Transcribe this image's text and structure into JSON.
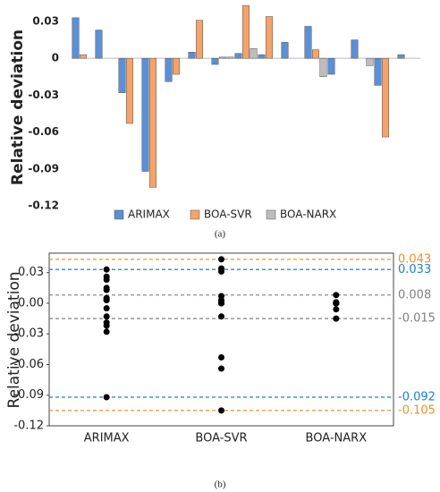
{
  "chart_data": [
    {
      "type": "bar",
      "ylabel": "Relative deviation",
      "caption": "(a)",
      "categories": [
        null,
        null,
        null,
        null,
        null,
        null,
        null,
        null,
        null,
        null,
        null,
        null,
        null,
        null,
        null
      ],
      "series": [
        {
          "name": "ARIMAX",
          "color": "#5b8fd6",
          "values": [
            0.033,
            0.023,
            -0.028,
            -0.092,
            -0.019,
            0.005,
            -0.005,
            0.004,
            0.003,
            0.013,
            0.026,
            -0.013,
            0.015,
            -0.022,
            0.003
          ]
        },
        {
          "name": "BOA-SVR",
          "color": "#f5a36b",
          "values": [
            0.003,
            0,
            -0.053,
            -0.105,
            -0.013,
            0.031,
            0.001,
            0.043,
            0.034,
            0,
            0.007,
            0,
            0,
            -0.064,
            0
          ]
        },
        {
          "name": "BOA-NARX",
          "color": "#bdbdbd",
          "values": [
            0,
            0,
            0,
            0,
            0,
            0,
            0.001,
            0.008,
            0,
            0,
            -0.015,
            0,
            -0.006,
            0,
            0
          ]
        }
      ],
      "ylim": [
        -0.12,
        0.046
      ],
      "yticks": [
        0.03,
        0,
        -0.03,
        -0.06,
        -0.09,
        -0.12
      ],
      "legend": "bottom"
    },
    {
      "type": "strip",
      "ylabel": "Relative deviation",
      "caption": "(b)",
      "categories": [
        "ARIMAX",
        "BOA-SVR",
        "BOA-NARX"
      ],
      "values": [
        [
          0.033,
          0.023,
          -0.028,
          -0.092,
          -0.019,
          0.005,
          -0.005,
          0.004,
          0.003,
          0.013,
          0.026,
          -0.013,
          0.015,
          -0.022,
          0.003
        ],
        [
          0.003,
          0,
          -0.053,
          -0.105,
          -0.013,
          0.031,
          0.001,
          0.043,
          0.034,
          0,
          0.007,
          0,
          0,
          -0.064,
          0
        ],
        [
          0,
          0,
          0,
          0,
          0,
          0,
          0.001,
          0.008,
          0,
          0,
          -0.015,
          0,
          -0.006,
          0,
          0
        ]
      ],
      "color": "#000000",
      "hlines": [
        {
          "value": 0.043,
          "color": "#f0902a"
        },
        {
          "value": 0.033,
          "color": "#1a7fd6"
        },
        {
          "value": 0.008,
          "color": "#808080"
        },
        {
          "value": -0.015,
          "color": "#808080"
        },
        {
          "value": -0.092,
          "color": "#1a7fd6"
        },
        {
          "value": -0.105,
          "color": "#f0902a"
        }
      ],
      "ylim": [
        -0.12,
        0.049
      ],
      "yticks": [
        0.03,
        {
          "value": 0,
          "label": "0.00"
        },
        -0.03,
        -0.06,
        -0.09,
        -0.12
      ]
    }
  ]
}
